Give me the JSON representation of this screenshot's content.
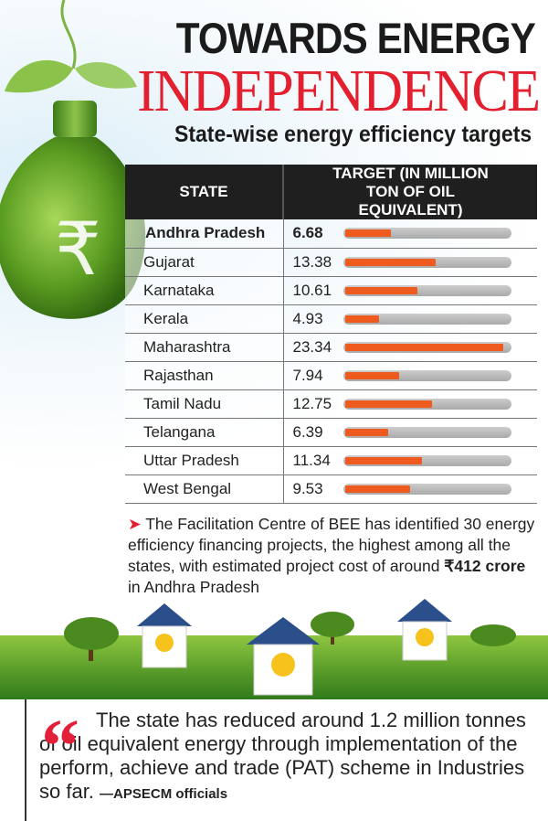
{
  "title_line1": "TOWARDS ENERGY",
  "title_line2": "INDEPENDENCE",
  "subtitle": "State-wise energy efficiency targets",
  "chart_data": {
    "type": "table",
    "columns": [
      "STATE",
      "TARGET (IN MILLION TON OF OIL EQUIVALENT)"
    ],
    "categories": [
      "Andhra Pradesh",
      "Gujarat",
      "Karnataka",
      "Kerala",
      "Maharashtra",
      "Rajasthan",
      "Tamil Nadu",
      "Telangana",
      "Uttar Pradesh",
      "West Bengal"
    ],
    "values": [
      6.68,
      13.38,
      10.61,
      4.93,
      23.34,
      7.94,
      12.75,
      6.39,
      11.34,
      9.53
    ],
    "value_labels": [
      "6.68",
      "13.38",
      "10.61",
      "4.93",
      "23.34",
      "7.94",
      "12.75",
      "6.39",
      "11.34",
      "9.53"
    ],
    "highlight": "Andhra Pradesh",
    "bar_color": "#ef5a1e",
    "track_color": "#bbbbbb"
  },
  "note": {
    "arrow": "➤",
    "text_before": " The Facilitation Centre of BEE has identified 30 energy efficiency financing projects, the highest among all the states, with estimated project cost of around ",
    "bold": "₹412 crore",
    "text_after": " in Andhra Pradesh"
  },
  "quote": {
    "mark": "“",
    "text": "The state has reduced around 1.2 million tonnes of oil equivalent energy through implementation of the perform, achieve and trade (PAT) scheme in Industries so far. ",
    "source": "—APSECM officials"
  },
  "colors": {
    "title_red": "#e2202f",
    "header_bg": "#1f1f1f",
    "bulb_green": "#6fae2a"
  },
  "icons": [
    "lightbulb-rupee-icon",
    "house-bulb-icon",
    "tree-icon"
  ]
}
